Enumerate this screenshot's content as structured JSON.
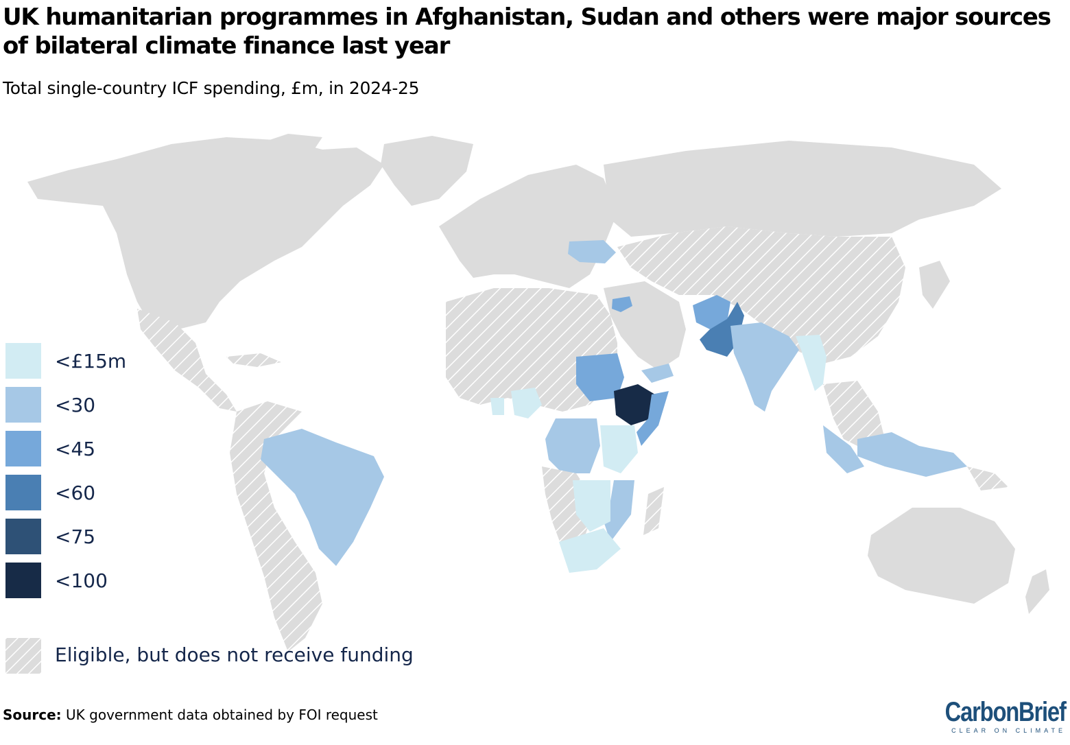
{
  "title": "UK humanitarian programmes in Afghanistan, Sudan and others were major sources of bilateral climate finance last year",
  "subtitle": "Total single-country ICF spending, £m, in 2024-25",
  "legend": {
    "bins": [
      {
        "label": "<£15m",
        "color": "#d2ecf3"
      },
      {
        "label": "<30",
        "color": "#a6c8e6"
      },
      {
        "label": "<45",
        "color": "#76a8da"
      },
      {
        "label": "<60",
        "color": "#4a7fb3"
      },
      {
        "label": "<75",
        "color": "#2e5176"
      },
      {
        "label": "<100",
        "color": "#172b47"
      }
    ],
    "eligible_label": "Eligible, but does not receive funding"
  },
  "source_label": "Source:",
  "source_text": "UK government data obtained by FOI request",
  "logo": {
    "main": "CarbonBrief",
    "tagline": "CLEAR ON CLIMATE"
  },
  "colors": {
    "land": "#dcdcdc",
    "hatch": "#ffffff",
    "text": "#14264a"
  }
}
